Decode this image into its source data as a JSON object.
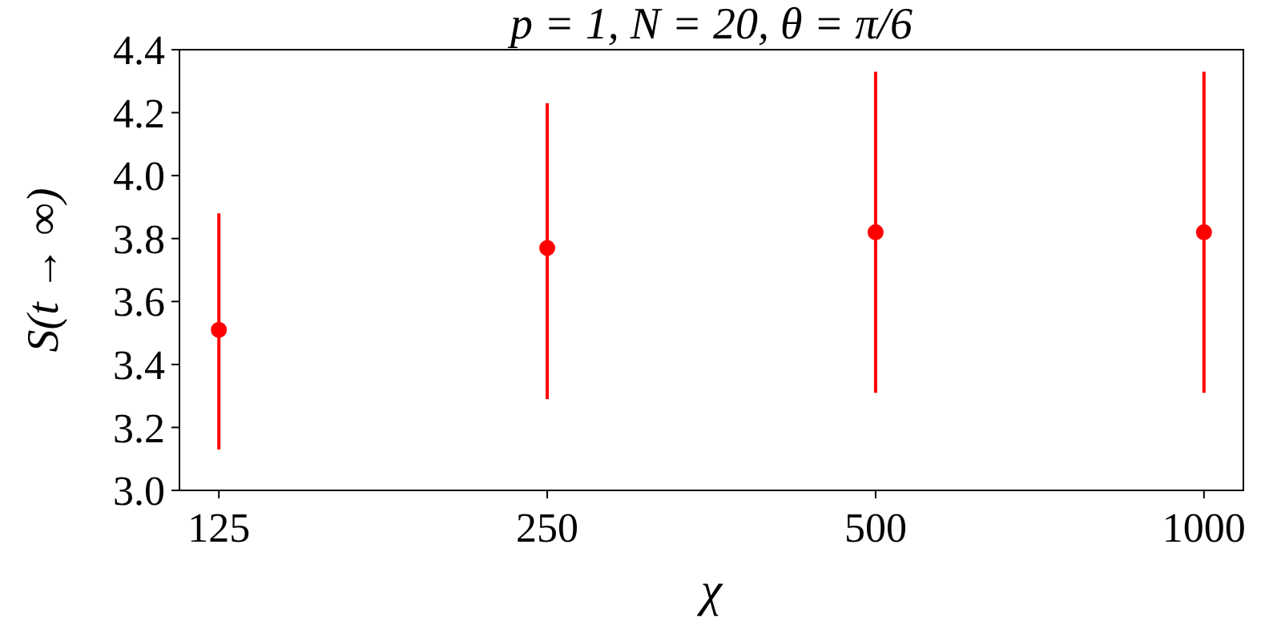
{
  "chart_data": {
    "type": "scatter",
    "title": "p = 1,  N = 20,  θ = π/6",
    "xlabel": "χ",
    "ylabel": "S(t → ∞)",
    "categories": [
      "125",
      "250",
      "500",
      "1000"
    ],
    "series": [
      {
        "color": "#ff0000",
        "values": [
          3.51,
          3.77,
          3.82,
          3.82
        ],
        "errors": [
          [
            3.13,
            3.88
          ],
          [
            3.29,
            4.23
          ],
          [
            3.31,
            4.33
          ],
          [
            3.31,
            4.33
          ]
        ]
      }
    ],
    "ylim": [
      3.0,
      4.4
    ],
    "yticks": [
      {
        "value": 3.0,
        "label": "3.0"
      },
      {
        "value": 3.2,
        "label": "3.2"
      },
      {
        "value": 3.4,
        "label": "3.4"
      },
      {
        "value": 3.6,
        "label": "3.6"
      },
      {
        "value": 3.8,
        "label": "3.8"
      },
      {
        "value": 4.0,
        "label": "4.0"
      },
      {
        "value": 4.2,
        "label": "4.2"
      },
      {
        "value": 4.4,
        "label": "4.4"
      }
    ],
    "grid": false,
    "marker": "circle"
  }
}
